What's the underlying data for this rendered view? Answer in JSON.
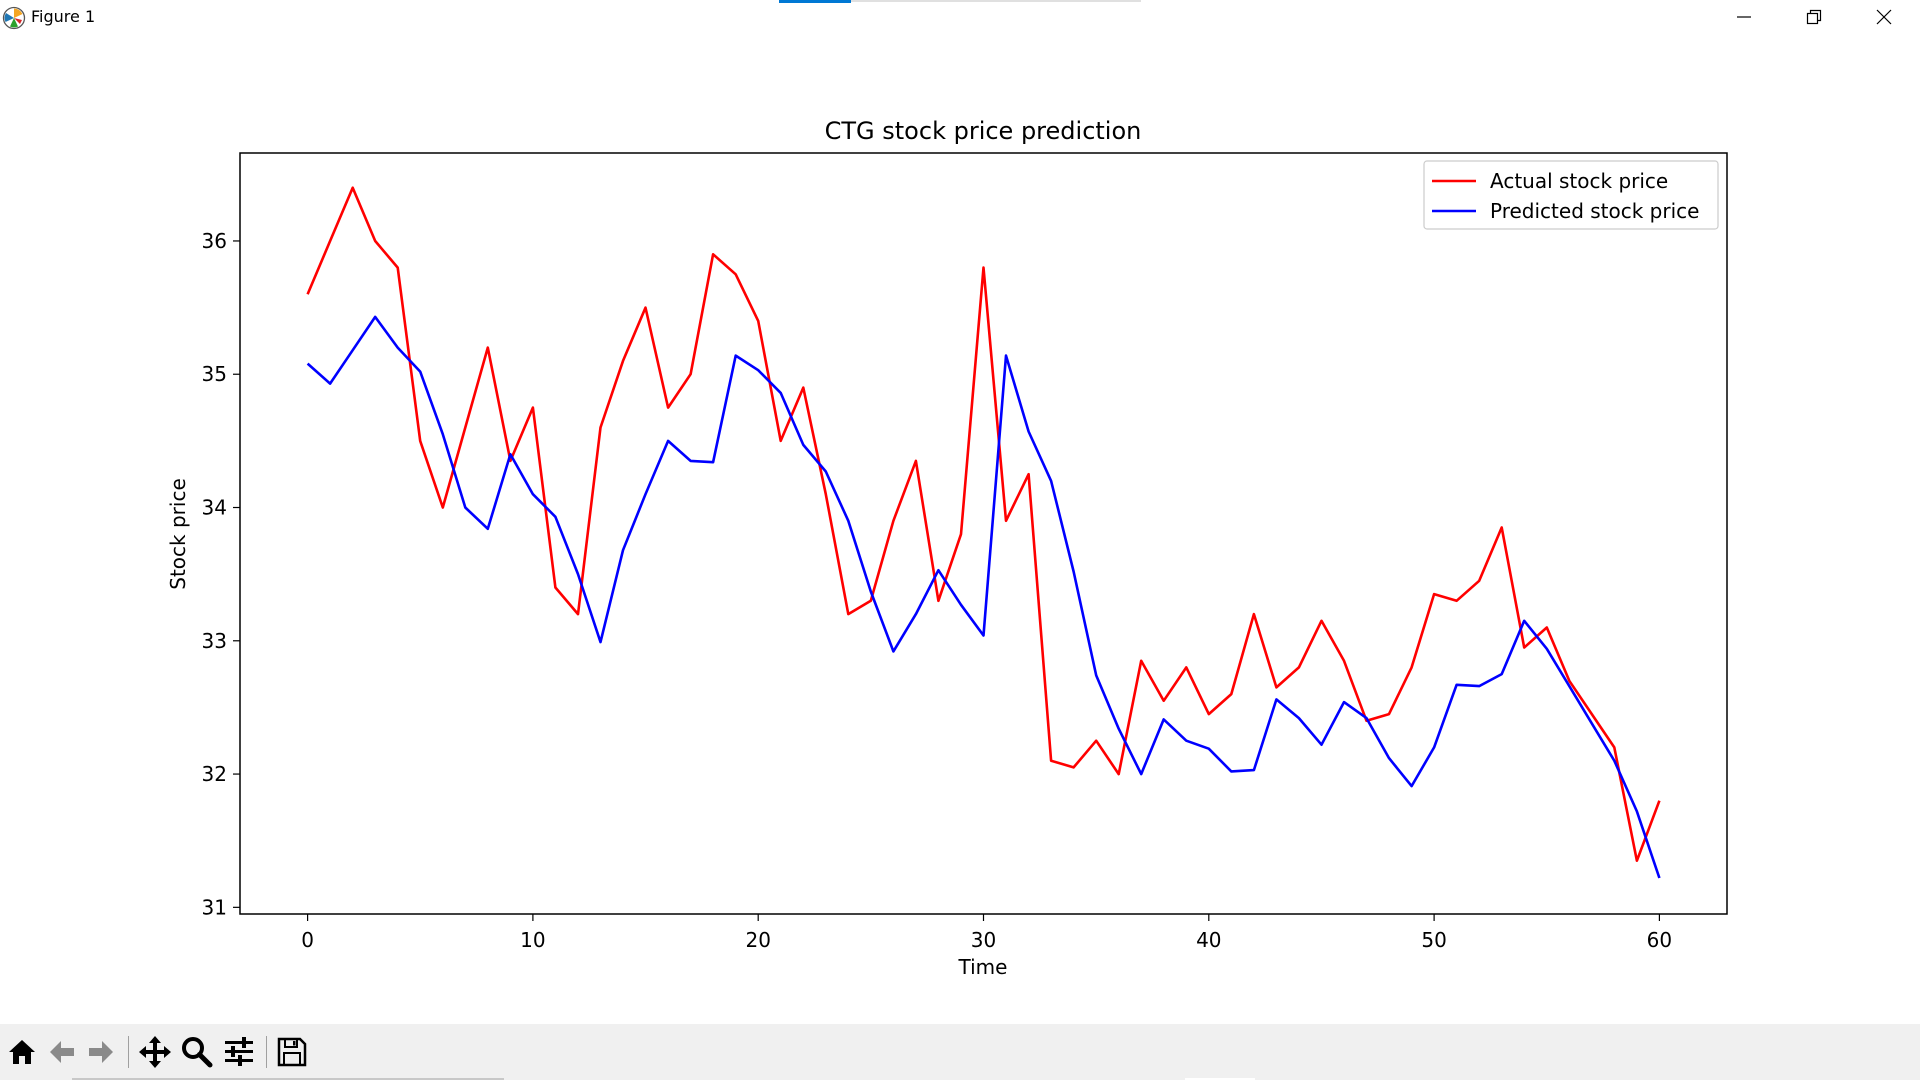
{
  "window": {
    "title": "Figure 1",
    "icon": "matplotlib-icon",
    "controls": [
      "minimize-icon",
      "maximize-icon",
      "close-icon"
    ]
  },
  "toolbar": {
    "buttons": [
      {
        "name": "home-button",
        "icon": "home-icon"
      },
      {
        "name": "back-button",
        "icon": "arrow-left-icon"
      },
      {
        "name": "forward-button",
        "icon": "arrow-right-icon"
      },
      {
        "name": "pan-button",
        "icon": "move-icon"
      },
      {
        "name": "zoom-button",
        "icon": "magnifier-icon"
      },
      {
        "name": "configure-subplots-button",
        "icon": "sliders-icon"
      },
      {
        "name": "save-button",
        "icon": "floppy-disk-icon"
      }
    ]
  },
  "chart_data": {
    "type": "line",
    "title": "CTG stock price prediction",
    "xlabel": "Time",
    "ylabel": "Stock price",
    "xlim": [
      -3,
      63
    ],
    "ylim": [
      30.95,
      36.66
    ],
    "xticks": [
      0,
      10,
      20,
      30,
      40,
      50,
      60
    ],
    "yticks": [
      31,
      32,
      33,
      34,
      35,
      36
    ],
    "grid": false,
    "legend": "top-right",
    "x": [
      0,
      1,
      2,
      3,
      4,
      5,
      6,
      7,
      8,
      9,
      10,
      11,
      12,
      13,
      14,
      15,
      16,
      17,
      18,
      19,
      20,
      21,
      22,
      23,
      24,
      25,
      26,
      27,
      28,
      29,
      30,
      31,
      32,
      33,
      34,
      35,
      36,
      37,
      38,
      39,
      40,
      41,
      42,
      43,
      44,
      45,
      46,
      47,
      48,
      49,
      50,
      51,
      52,
      53,
      54,
      55,
      56,
      57,
      58,
      59,
      60
    ],
    "series": [
      {
        "name": "Actual stock price",
        "color": "#ff0000",
        "values": [
          35.6,
          36.0,
          36.4,
          36.0,
          35.8,
          34.5,
          34.0,
          34.6,
          35.2,
          34.35,
          34.75,
          33.4,
          33.2,
          34.6,
          35.1,
          35.5,
          34.75,
          35.0,
          35.9,
          35.75,
          35.4,
          34.5,
          34.9,
          34.1,
          33.2,
          33.3,
          33.9,
          34.35,
          33.3,
          33.8,
          35.8,
          33.9,
          34.25,
          32.1,
          32.05,
          32.25,
          32.0,
          32.85,
          32.55,
          32.8,
          32.45,
          32.6,
          33.2,
          32.65,
          32.8,
          33.15,
          32.85,
          32.4,
          32.45,
          32.8,
          33.35,
          33.3,
          33.45,
          33.85,
          32.95,
          33.1,
          32.7,
          32.45,
          32.2,
          31.35,
          31.8
        ]
      },
      {
        "name": "Predicted stock price",
        "color": "#0000ff",
        "values": [
          35.08,
          34.93,
          35.18,
          35.43,
          35.2,
          35.02,
          34.55,
          34.0,
          33.84,
          34.4,
          34.1,
          33.93,
          33.5,
          32.99,
          33.68,
          34.1,
          34.5,
          34.35,
          34.34,
          35.14,
          35.03,
          34.86,
          34.47,
          34.27,
          33.9,
          33.37,
          32.92,
          33.2,
          33.53,
          33.27,
          33.04,
          35.14,
          34.57,
          34.2,
          33.52,
          32.74,
          32.34,
          32.0,
          32.41,
          32.25,
          32.19,
          32.02,
          32.03,
          32.56,
          32.42,
          32.22,
          32.54,
          32.42,
          32.12,
          31.91,
          32.2,
          32.67,
          32.66,
          32.75,
          33.15,
          32.94,
          32.66,
          32.38,
          32.1,
          31.72,
          31.22
        ]
      }
    ]
  }
}
